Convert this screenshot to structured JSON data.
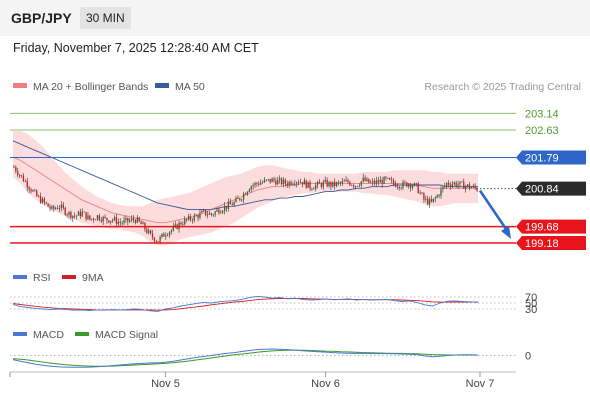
{
  "header": {
    "symbol": "GBP/JPY",
    "timeframe": "30 MIN",
    "timestamp": "Friday, November 7, 2025 12:28:40 AM CET",
    "research": "Research © 2025 Trading Central"
  },
  "colors": {
    "ma20": "#f08080",
    "ma50": "#3b5a9a",
    "bollinger_fill": "#fbd0d0",
    "resistance_green": "#8cc26b",
    "level_blue": "#2f67c8",
    "support_red": "#e8141b",
    "current_price_bg": "#2b2b2b",
    "candle_up": "#2b6b36",
    "candle_down": "#c02020",
    "rsi": "#4a78d4",
    "rsi_ma": "#d02020",
    "macd": "#4a78d4",
    "macd_signal": "#3a9a2a",
    "forecast_arrow": "#2f67c8"
  },
  "chart_data": [
    {
      "type": "candlestick",
      "legend": [
        {
          "name": "MA 20 + Bollinger Bands",
          "color": "#f08080"
        },
        {
          "name": "MA 50",
          "color": "#3b5a9a"
        }
      ],
      "x_ticks": [
        "Nov 5",
        "Nov 6",
        "Nov 7"
      ],
      "ylim": [
        198.6,
        203.7
      ],
      "levels": [
        {
          "label": "203.14",
          "value": 203.14,
          "kind": "resistance",
          "style": "green-line"
        },
        {
          "label": "202.63",
          "value": 202.63,
          "kind": "resistance",
          "style": "green-line"
        },
        {
          "label": "201.79",
          "value": 201.79,
          "kind": "pivot",
          "style": "blue-line"
        },
        {
          "label": "200.84",
          "value": 200.84,
          "kind": "current-price",
          "style": "dotted"
        },
        {
          "label": "199.68",
          "value": 199.68,
          "kind": "support",
          "style": "red-line"
        },
        {
          "label": "199.18",
          "value": 199.18,
          "kind": "support",
          "style": "red-line"
        }
      ],
      "close": [
        201.5,
        201.2,
        200.9,
        200.6,
        200.4,
        200.2,
        200.3,
        200.1,
        200.0,
        200.1,
        199.9,
        200.0,
        199.9,
        199.9,
        199.8,
        199.85,
        199.9,
        199.7,
        199.4,
        199.25,
        199.5,
        199.6,
        199.8,
        199.9,
        200.0,
        200.1,
        200.05,
        200.2,
        200.3,
        200.4,
        200.6,
        200.9,
        201.0,
        201.05,
        201.1,
        201.05,
        201.0,
        201.1,
        201.05,
        200.9,
        200.95,
        201.0,
        200.95,
        201.0,
        201.05,
        200.95,
        201.1,
        201.0,
        201.05,
        201.1,
        201.0,
        200.95,
        201.0,
        200.9,
        200.5,
        200.4,
        200.7,
        201.0,
        201.0,
        200.95,
        200.9,
        200.84
      ],
      "ma20": [
        201.8,
        201.7,
        201.55,
        201.4,
        201.25,
        201.1,
        200.95,
        200.8,
        200.65,
        200.5,
        200.4,
        200.3,
        200.2,
        200.1,
        200.05,
        200.0,
        199.95,
        199.9,
        199.85,
        199.8,
        199.8,
        199.85,
        199.9,
        199.95,
        200.0,
        200.1,
        200.2,
        200.3,
        200.4,
        200.5,
        200.6,
        200.7,
        200.8,
        200.85,
        200.9,
        200.9,
        200.95,
        200.95,
        201.0,
        201.0,
        201.0,
        201.0,
        201.0,
        201.0,
        201.0,
        201.0,
        201.0,
        201.0,
        201.0,
        201.0,
        201.0,
        201.0,
        201.0,
        200.95,
        200.9,
        200.85,
        200.85,
        200.85,
        200.85,
        200.85,
        200.85,
        200.85
      ],
      "bb_upper": [
        202.6,
        202.6,
        202.5,
        202.3,
        202.1,
        201.8,
        201.55,
        201.3,
        201.1,
        200.9,
        200.75,
        200.6,
        200.5,
        200.4,
        200.35,
        200.3,
        200.3,
        200.3,
        200.4,
        200.5,
        200.55,
        200.6,
        200.65,
        200.7,
        200.8,
        200.9,
        201.0,
        201.1,
        201.2,
        201.25,
        201.3,
        201.4,
        201.5,
        201.55,
        201.55,
        201.5,
        201.45,
        201.4,
        201.35,
        201.35,
        201.3,
        201.3,
        201.3,
        201.3,
        201.3,
        201.3,
        201.35,
        201.35,
        201.35,
        201.35,
        201.4,
        201.4,
        201.4,
        201.4,
        201.4,
        201.35,
        201.35,
        201.3,
        201.3,
        201.3,
        201.3,
        201.3
      ],
      "bb_lower": [
        201.2,
        201.0,
        200.7,
        200.5,
        200.35,
        200.2,
        200.1,
        200.0,
        199.9,
        199.8,
        199.75,
        199.7,
        199.65,
        199.6,
        199.6,
        199.55,
        199.5,
        199.4,
        199.2,
        199.1,
        199.1,
        199.2,
        199.3,
        199.35,
        199.4,
        199.45,
        199.5,
        199.6,
        199.7,
        199.8,
        199.95,
        200.1,
        200.25,
        200.35,
        200.45,
        200.55,
        200.6,
        200.65,
        200.7,
        200.7,
        200.75,
        200.75,
        200.75,
        200.75,
        200.75,
        200.75,
        200.7,
        200.7,
        200.65,
        200.65,
        200.6,
        200.55,
        200.5,
        200.45,
        200.35,
        200.3,
        200.3,
        200.35,
        200.4,
        200.4,
        200.4,
        200.4
      ],
      "ma50": [
        202.3,
        202.2,
        202.1,
        202.0,
        201.9,
        201.8,
        201.7,
        201.6,
        201.5,
        201.4,
        201.3,
        201.2,
        201.1,
        201.0,
        200.9,
        200.8,
        200.7,
        200.6,
        200.5,
        200.4,
        200.35,
        200.3,
        200.25,
        200.2,
        200.2,
        200.2,
        200.2,
        200.25,
        200.3,
        200.3,
        200.35,
        200.4,
        200.45,
        200.5,
        200.5,
        200.55,
        200.55,
        200.6,
        200.6,
        200.65,
        200.7,
        200.75,
        200.75,
        200.8,
        200.8,
        200.85,
        200.85,
        200.9,
        200.9,
        200.9,
        200.95,
        200.95,
        200.95,
        200.95,
        200.95,
        200.95,
        200.95,
        200.9,
        200.9,
        200.9,
        200.9,
        200.9
      ]
    },
    {
      "type": "line",
      "panel": "RSI",
      "legend": [
        {
          "name": "RSI",
          "color": "#4a78d4"
        },
        {
          "name": "9MA",
          "color": "#d02020"
        }
      ],
      "y_ticks": [
        70,
        50,
        30
      ],
      "ylim": [
        0,
        100
      ],
      "rsi": [
        45,
        38,
        35,
        32,
        30,
        28,
        30,
        28,
        26,
        27,
        25,
        27,
        26,
        28,
        27,
        28,
        30,
        28,
        24,
        22,
        30,
        34,
        40,
        44,
        48,
        52,
        50,
        54,
        56,
        58,
        62,
        68,
        72,
        70,
        66,
        68,
        64,
        66,
        62,
        60,
        61,
        63,
        61,
        62,
        64,
        60,
        62,
        60,
        61,
        62,
        58,
        55,
        57,
        52,
        44,
        40,
        50,
        56,
        57,
        55,
        54,
        52
      ],
      "rsi_ma": [
        48,
        45,
        42,
        39,
        36,
        34,
        32,
        31,
        30,
        29,
        28,
        27,
        27,
        27,
        27,
        27,
        27,
        27,
        27,
        26,
        27,
        28,
        31,
        34,
        37,
        40,
        44,
        47,
        50,
        53,
        55,
        58,
        61,
        63,
        64,
        65,
        65,
        65,
        65,
        64,
        63,
        63,
        62,
        62,
        62,
        62,
        61,
        61,
        61,
        61,
        61,
        60,
        59,
        58,
        56,
        54,
        53,
        53,
        53,
        53,
        53,
        53
      ]
    },
    {
      "type": "line",
      "panel": "MACD",
      "legend": [
        {
          "name": "MACD",
          "color": "#4a78d4"
        },
        {
          "name": "MACD Signal",
          "color": "#3a9a2a"
        }
      ],
      "y_ticks": [
        0
      ],
      "ylim": [
        -0.7,
        0.6
      ],
      "macd": [
        -0.2,
        -0.28,
        -0.35,
        -0.42,
        -0.48,
        -0.52,
        -0.55,
        -0.56,
        -0.57,
        -0.57,
        -0.56,
        -0.54,
        -0.52,
        -0.49,
        -0.46,
        -0.43,
        -0.4,
        -0.38,
        -0.36,
        -0.36,
        -0.33,
        -0.28,
        -0.22,
        -0.16,
        -0.1,
        -0.05,
        0.0,
        0.05,
        0.1,
        0.14,
        0.19,
        0.24,
        0.28,
        0.3,
        0.31,
        0.3,
        0.28,
        0.26,
        0.23,
        0.2,
        0.18,
        0.16,
        0.14,
        0.12,
        0.11,
        0.1,
        0.1,
        0.09,
        0.09,
        0.09,
        0.08,
        0.07,
        0.06,
        0.04,
        -0.02,
        -0.06,
        -0.04,
        0.0,
        0.02,
        0.03,
        0.03,
        0.02
      ],
      "macd_signal": [
        -0.15,
        -0.18,
        -0.22,
        -0.27,
        -0.32,
        -0.37,
        -0.41,
        -0.45,
        -0.48,
        -0.5,
        -0.51,
        -0.52,
        -0.52,
        -0.51,
        -0.5,
        -0.48,
        -0.46,
        -0.44,
        -0.42,
        -0.4,
        -0.38,
        -0.35,
        -0.31,
        -0.27,
        -0.22,
        -0.17,
        -0.12,
        -0.07,
        -0.02,
        0.03,
        0.07,
        0.11,
        0.15,
        0.19,
        0.22,
        0.24,
        0.25,
        0.25,
        0.25,
        0.24,
        0.23,
        0.21,
        0.2,
        0.18,
        0.17,
        0.15,
        0.14,
        0.13,
        0.12,
        0.11,
        0.1,
        0.1,
        0.09,
        0.08,
        0.06,
        0.04,
        0.03,
        0.02,
        0.02,
        0.02,
        0.02,
        0.02
      ]
    }
  ]
}
